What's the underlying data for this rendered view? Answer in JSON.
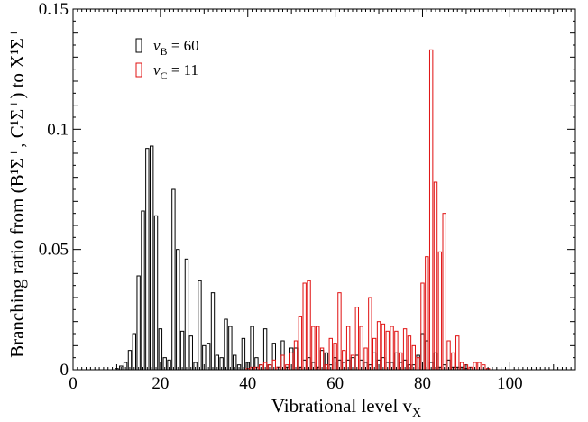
{
  "chart_data": {
    "type": "bar",
    "xlabel": "Vibrational level v",
    "xlabel_subscript": "X",
    "ylabel": "Branching ratio from (B¹Σ⁺, C¹Σ⁺) to X¹Σ⁺",
    "xlim": [
      0,
      115
    ],
    "ylim": [
      0,
      0.15
    ],
    "x_ticks": [
      0,
      20,
      40,
      60,
      80,
      100
    ],
    "y_ticks": [
      0,
      0.05,
      0.1,
      0.15
    ],
    "y_tick_labels": [
      "0",
      "0.05",
      "0.1",
      "0.15"
    ],
    "grid": false,
    "legend_position": "top-left",
    "series": [
      {
        "name": "v",
        "name_subscript": "B",
        "name_suffix": " = 60",
        "color": "#000000",
        "x": [
          10,
          11,
          12,
          13,
          14,
          15,
          16,
          17,
          18,
          19,
          20,
          21,
          22,
          23,
          24,
          25,
          26,
          27,
          28,
          29,
          30,
          31,
          32,
          33,
          34,
          35,
          36,
          37,
          38,
          39,
          40,
          41,
          42,
          43,
          44,
          45,
          46,
          47,
          48,
          49,
          50,
          51,
          52,
          53,
          54,
          55,
          56,
          57,
          58,
          59,
          60,
          61,
          62,
          63,
          64,
          65,
          66,
          67,
          68,
          69,
          70,
          71,
          72,
          73,
          74,
          75,
          76,
          77,
          78,
          79,
          80,
          81,
          82,
          83,
          84,
          85,
          86,
          87,
          88,
          89,
          90
        ],
        "values": [
          0.0005,
          0.0015,
          0.003,
          0.008,
          0.015,
          0.039,
          0.066,
          0.092,
          0.093,
          0.064,
          0.017,
          0.005,
          0.004,
          0.075,
          0.05,
          0.016,
          0.046,
          0.014,
          0.003,
          0.037,
          0.01,
          0.011,
          0.032,
          0.006,
          0.005,
          0.021,
          0.018,
          0.006,
          0.002,
          0.013,
          0.003,
          0.018,
          0.005,
          0.002,
          0.017,
          0.002,
          0.011,
          0.001,
          0.012,
          0.001,
          0.009,
          0.009,
          0.001,
          0.004,
          0.005,
          0.003,
          0.001,
          0.008,
          0.007,
          0.002,
          0.005,
          0.004,
          0.003,
          0.004,
          0.005,
          0.006,
          0.004,
          0.003,
          0.002,
          0.007,
          0.004,
          0.005,
          0.003,
          0.003,
          0.007,
          0.003,
          0.004,
          0.002,
          0.002,
          0.006,
          0.015,
          0.012,
          0.003,
          0.007,
          0.001,
          0.002,
          0.004,
          0.001,
          0.001,
          0.001,
          0.0005
        ]
      },
      {
        "name": "v",
        "name_subscript": "C",
        "name_suffix": " = 11",
        "color": "#e01010",
        "x": [
          40,
          41,
          42,
          43,
          44,
          45,
          46,
          47,
          48,
          49,
          50,
          51,
          52,
          53,
          54,
          55,
          56,
          57,
          58,
          59,
          60,
          61,
          62,
          63,
          64,
          65,
          66,
          67,
          68,
          69,
          70,
          71,
          72,
          73,
          74,
          75,
          76,
          77,
          78,
          79,
          80,
          81,
          82,
          83,
          84,
          85,
          86,
          87,
          88,
          89,
          90,
          91,
          92,
          93,
          94,
          95
        ],
        "values": [
          0.0005,
          0.001,
          0.001,
          0.002,
          0.003,
          0.002,
          0.004,
          0.001,
          0.006,
          0.002,
          0.007,
          0.012,
          0.022,
          0.036,
          0.037,
          0.018,
          0.018,
          0.009,
          0.002,
          0.013,
          0.011,
          0.032,
          0.008,
          0.018,
          0.006,
          0.026,
          0.018,
          0.009,
          0.03,
          0.013,
          0.02,
          0.019,
          0.016,
          0.018,
          0.016,
          0.007,
          0.017,
          0.014,
          0.01,
          0.005,
          0.036,
          0.047,
          0.133,
          0.078,
          0.049,
          0.065,
          0.012,
          0.007,
          0.014,
          0.003,
          0.002,
          0.001,
          0.003,
          0.003,
          0.002,
          0.0005
        ]
      }
    ]
  }
}
